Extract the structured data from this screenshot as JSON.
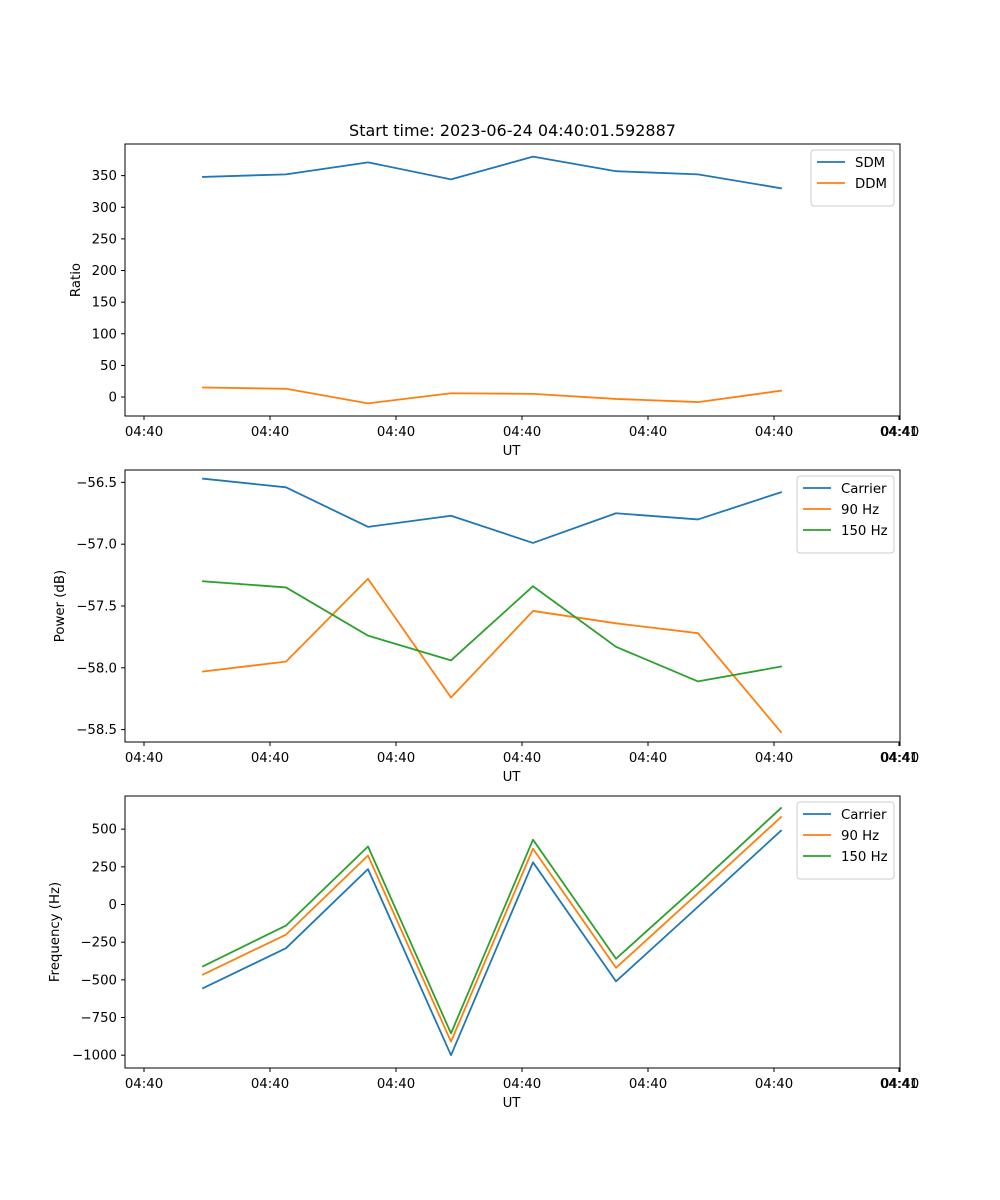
{
  "chart_data": [
    {
      "type": "line",
      "title": "Start time: 2023-06-24 04:40:01.592887",
      "xlabel": "UT",
      "ylabel": "Ratio",
      "xtick_labels": [
        "04:40",
        "04:40",
        "04:40",
        "04:40",
        "04:40",
        "04:40",
        "04:40",
        "04:41"
      ],
      "yticks": [
        0,
        50,
        100,
        150,
        200,
        250,
        300,
        350
      ],
      "ylim": [
        -30,
        400
      ],
      "legend_position": "top-right",
      "grid": false,
      "series": [
        {
          "name": "SDM",
          "color": "#1f77b4",
          "values": [
            348,
            352,
            371,
            344,
            380,
            357,
            352,
            330
          ]
        },
        {
          "name": "DDM",
          "color": "#ff7f0e",
          "values": [
            15,
            13,
            -10,
            6,
            5,
            -3,
            -8,
            10
          ]
        }
      ]
    },
    {
      "type": "line",
      "title": "",
      "xlabel": "UT",
      "ylabel": "Power (dB)",
      "xtick_labels": [
        "04:40",
        "04:40",
        "04:40",
        "04:40",
        "04:40",
        "04:40",
        "04:40",
        "04:41"
      ],
      "yticks": [
        -58.5,
        -58.0,
        -57.5,
        -57.0,
        -56.5
      ],
      "ytick_labels": [
        "−58.5",
        "−58.0",
        "−57.5",
        "−57.0",
        "−56.5"
      ],
      "ylim": [
        -58.6,
        -56.4
      ],
      "legend_position": "top-right",
      "grid": false,
      "series": [
        {
          "name": "Carrier",
          "color": "#1f77b4",
          "values": [
            -56.47,
            -56.54,
            -56.86,
            -56.77,
            -56.99,
            -56.75,
            -56.8,
            -56.58
          ]
        },
        {
          "name": "90 Hz",
          "color": "#ff7f0e",
          "values": [
            -58.03,
            -57.95,
            -57.28,
            -58.24,
            -57.54,
            -57.64,
            -57.72,
            -58.52
          ]
        },
        {
          "name": "150 Hz",
          "color": "#2ca02c",
          "values": [
            -57.3,
            -57.35,
            -57.74,
            -57.94,
            -57.34,
            -57.83,
            -58.11,
            -57.99
          ]
        }
      ]
    },
    {
      "type": "line",
      "title": "",
      "xlabel": "UT",
      "ylabel": "Frequency (Hz)",
      "xtick_labels": [
        "04:40",
        "04:40",
        "04:40",
        "04:40",
        "04:40",
        "04:40",
        "04:40",
        "04:41"
      ],
      "yticks": [
        -1000,
        -750,
        -500,
        -250,
        0,
        250,
        500
      ],
      "ytick_labels": [
        "−1000",
        "−750",
        "−500",
        "−250",
        "0",
        "250",
        "500"
      ],
      "ylim": [
        -1085,
        720
      ],
      "legend_position": "top-right",
      "grid": false,
      "series": [
        {
          "name": "Carrier",
          "color": "#1f77b4",
          "values": [
            -555,
            -290,
            235,
            -1000,
            280,
            -510,
            -15,
            490
          ]
        },
        {
          "name": "90 Hz",
          "color": "#ff7f0e",
          "values": [
            -465,
            -200,
            325,
            -910,
            370,
            -420,
            75,
            580
          ]
        },
        {
          "name": "150 Hz",
          "color": "#2ca02c",
          "values": [
            -410,
            -140,
            385,
            -855,
            430,
            -360,
            130,
            640
          ]
        }
      ]
    }
  ]
}
